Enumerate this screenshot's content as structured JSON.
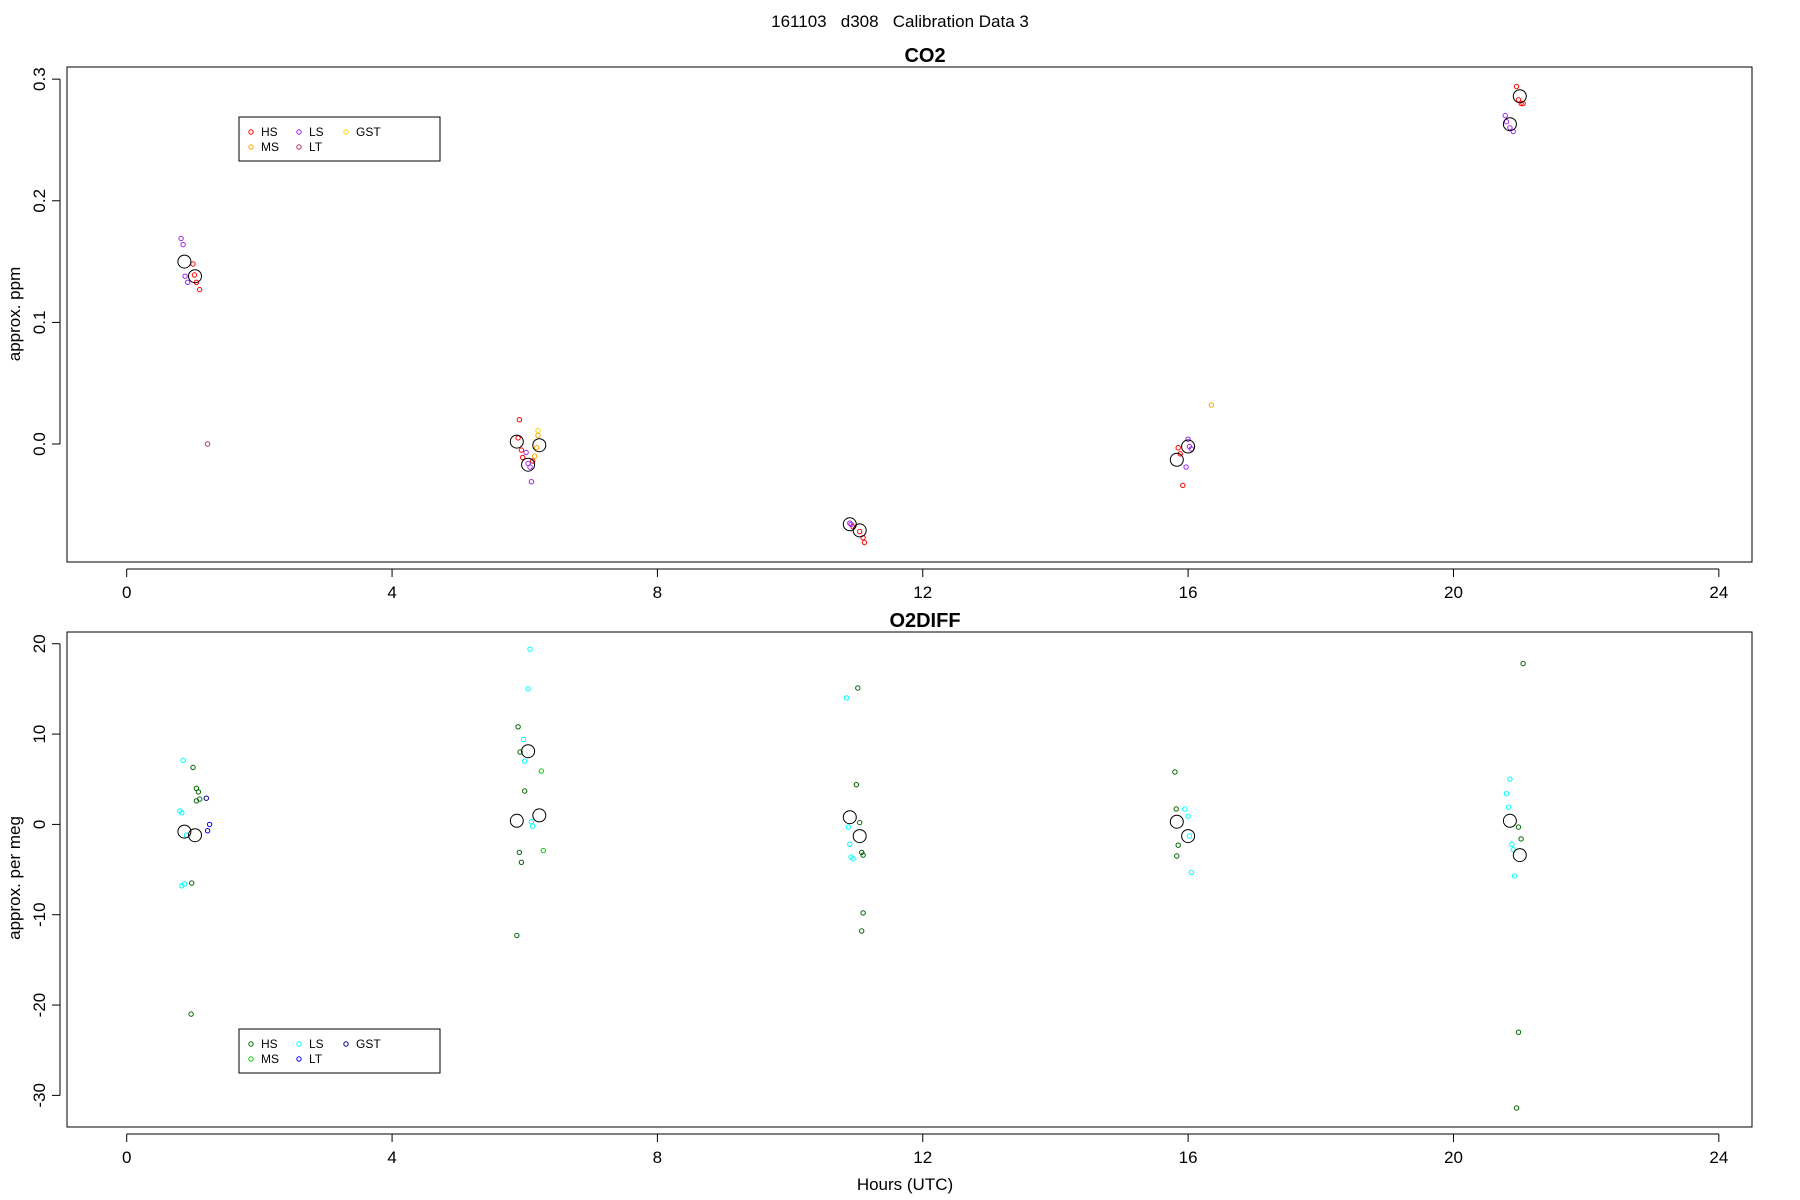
{
  "figure": {
    "title": "161103   d308   Calibration Data 3"
  },
  "chart_data": [
    {
      "type": "scatter",
      "title": "CO2",
      "xlabel": "",
      "ylabel": "approx. ppm",
      "xlim": [
        -0.9,
        24.5
      ],
      "ylim": [
        -0.097,
        0.31
      ],
      "xticks": [
        0,
        4,
        8,
        12,
        16,
        20,
        24
      ],
      "yticks": [
        0.0,
        0.1,
        0.2,
        0.3
      ],
      "ytick_labels": [
        "0.0",
        "0.1",
        "0.2",
        "0.3"
      ],
      "legend": {
        "position": "top-left",
        "entries": [
          {
            "label": "HS",
            "color": "#ff0000"
          },
          {
            "label": "MS",
            "color": "#ffa500"
          },
          {
            "label": "LS",
            "color": "#a020f0"
          },
          {
            "label": "LT",
            "color": "#b03060"
          },
          {
            "label": "GST",
            "color": "#ffd700"
          }
        ]
      },
      "series": [
        {
          "name": "HS",
          "color": "#ff0000",
          "points": [
            [
              1.0,
              0.148
            ],
            [
              1.02,
              0.139
            ],
            [
              1.05,
              0.133
            ],
            [
              1.1,
              0.127
            ],
            [
              5.92,
              0.02
            ],
            [
              5.9,
              0.005
            ],
            [
              5.95,
              -0.005
            ],
            [
              5.97,
              -0.011
            ],
            [
              6.12,
              -0.014
            ],
            [
              10.95,
              -0.068
            ],
            [
              11.05,
              -0.072
            ],
            [
              11.1,
              -0.077
            ],
            [
              11.12,
              -0.081
            ],
            [
              15.85,
              -0.003
            ],
            [
              15.88,
              -0.008
            ],
            [
              15.92,
              -0.034
            ],
            [
              20.95,
              0.294
            ],
            [
              20.98,
              0.283
            ],
            [
              21.02,
              0.28
            ],
            [
              21.05,
              0.28
            ]
          ]
        },
        {
          "name": "MS",
          "color": "#ffa500",
          "points": [
            [
              6.15,
              -0.01
            ],
            [
              6.18,
              -0.003
            ],
            [
              6.2,
              0.007
            ],
            [
              16.35,
              0.032
            ]
          ]
        },
        {
          "name": "LS",
          "color": "#a020f0",
          "points": [
            [
              0.82,
              0.169
            ],
            [
              0.85,
              0.164
            ],
            [
              0.88,
              0.138
            ],
            [
              0.92,
              0.133
            ],
            [
              6.02,
              -0.007
            ],
            [
              6.05,
              -0.016
            ],
            [
              6.08,
              -0.019
            ],
            [
              6.1,
              -0.031
            ],
            [
              10.9,
              -0.065
            ],
            [
              10.92,
              -0.066
            ],
            [
              16.0,
              0.004
            ],
            [
              16.02,
              -0.002
            ],
            [
              16.05,
              -0.004
            ],
            [
              15.97,
              -0.019
            ],
            [
              20.78,
              0.27
            ],
            [
              20.8,
              0.265
            ],
            [
              20.85,
              0.26
            ],
            [
              20.9,
              0.257
            ]
          ]
        },
        {
          "name": "LT",
          "color": "#b03060",
          "points": [
            [
              1.22,
              0.0
            ]
          ]
        },
        {
          "name": "GST",
          "color": "#ffd700",
          "points": [
            [
              6.2,
              0.011
            ]
          ]
        }
      ],
      "means": [
        [
          0.87,
          0.15
        ],
        [
          1.03,
          0.138
        ],
        [
          5.88,
          0.002
        ],
        [
          6.22,
          -0.001
        ],
        [
          6.05,
          -0.017
        ],
        [
          10.9,
          -0.066
        ],
        [
          11.05,
          -0.071
        ],
        [
          15.83,
          -0.013
        ],
        [
          16.0,
          -0.002
        ],
        [
          20.85,
          0.263
        ],
        [
          21.0,
          0.286
        ]
      ]
    },
    {
      "type": "scatter",
      "title": "O2DIFF",
      "xlabel": "Hours (UTC)",
      "ylabel": "approx. per meg",
      "xlim": [
        -0.9,
        24.5
      ],
      "ylim": [
        -33.5,
        21.3
      ],
      "xticks": [
        0,
        4,
        8,
        12,
        16,
        20,
        24
      ],
      "yticks": [
        -30,
        -20,
        -10,
        0,
        10,
        20
      ],
      "ytick_labels": [
        "-30",
        "-20",
        "-10",
        "0",
        "10",
        "20"
      ],
      "legend": {
        "position": "bottom-left",
        "entries": [
          {
            "label": "HS",
            "color": "#006400"
          },
          {
            "label": "MS",
            "color": "#00cd00"
          },
          {
            "label": "LS",
            "color": "#00ffff"
          },
          {
            "label": "LT",
            "color": "#0000ff"
          },
          {
            "label": "GST",
            "color": "#00008b"
          }
        ]
      },
      "series": [
        {
          "name": "HS",
          "color": "#006400",
          "points": [
            [
              1.0,
              6.3
            ],
            [
              1.05,
              4.0
            ],
            [
              1.08,
              3.6
            ],
            [
              1.1,
              2.8
            ],
            [
              1.05,
              2.6
            ],
            [
              0.98,
              -6.5
            ],
            [
              0.97,
              -21.0
            ],
            [
              5.9,
              10.8
            ],
            [
              5.93,
              8.0
            ],
            [
              6.0,
              3.7
            ],
            [
              5.92,
              -3.1
            ],
            [
              5.95,
              -4.2
            ],
            [
              5.88,
              -12.3
            ],
            [
              11.02,
              15.1
            ],
            [
              11.0,
              4.4
            ],
            [
              11.05,
              0.2
            ],
            [
              11.08,
              -3.1
            ],
            [
              11.1,
              -3.4
            ],
            [
              11.1,
              -9.8
            ],
            [
              11.08,
              -11.8
            ],
            [
              15.8,
              5.8
            ],
            [
              15.82,
              1.7
            ],
            [
              15.85,
              -2.3
            ],
            [
              15.83,
              -3.5
            ],
            [
              21.05,
              17.8
            ],
            [
              20.98,
              -0.3
            ],
            [
              21.02,
              -1.6
            ],
            [
              20.98,
              -23.0
            ],
            [
              20.95,
              -31.4
            ]
          ]
        },
        {
          "name": "MS",
          "color": "#00cd00",
          "points": [
            [
              6.25,
              5.9
            ],
            [
              6.28,
              -2.9
            ]
          ]
        },
        {
          "name": "LS",
          "color": "#00ffff",
          "points": [
            [
              0.85,
              7.1
            ],
            [
              0.8,
              1.5
            ],
            [
              0.83,
              1.3
            ],
            [
              0.9,
              -1.2
            ],
            [
              0.87,
              -6.6
            ],
            [
              0.83,
              -6.8
            ],
            [
              6.08,
              19.4
            ],
            [
              6.05,
              15.0
            ],
            [
              5.98,
              9.4
            ],
            [
              6.0,
              7.0
            ],
            [
              6.1,
              0.3
            ],
            [
              6.12,
              -0.2
            ],
            [
              10.85,
              14.0
            ],
            [
              10.88,
              -0.3
            ],
            [
              10.9,
              -2.2
            ],
            [
              10.92,
              -3.6
            ],
            [
              10.95,
              -3.8
            ],
            [
              15.95,
              1.7
            ],
            [
              16.0,
              0.9
            ],
            [
              16.02,
              -1.3
            ],
            [
              16.05,
              -5.3
            ],
            [
              20.85,
              5.0
            ],
            [
              20.8,
              3.4
            ],
            [
              20.83,
              1.9
            ],
            [
              20.88,
              -2.2
            ],
            [
              20.9,
              -2.8
            ],
            [
              20.92,
              -5.7
            ]
          ]
        },
        {
          "name": "LT",
          "color": "#0000ff",
          "points": [
            [
              1.22,
              -0.7
            ],
            [
              1.25,
              0.0
            ]
          ]
        },
        {
          "name": "GST",
          "color": "#00008b",
          "points": [
            [
              1.2,
              2.9
            ]
          ]
        }
      ],
      "means": [
        [
          0.87,
          -0.8
        ],
        [
          1.03,
          -1.2
        ],
        [
          5.88,
          0.4
        ],
        [
          6.22,
          1.0
        ],
        [
          6.05,
          8.1
        ],
        [
          10.9,
          0.8
        ],
        [
          11.05,
          -1.3
        ],
        [
          15.83,
          0.3
        ],
        [
          16.0,
          -1.3
        ],
        [
          20.85,
          0.4
        ],
        [
          21.0,
          -3.4
        ]
      ]
    }
  ]
}
